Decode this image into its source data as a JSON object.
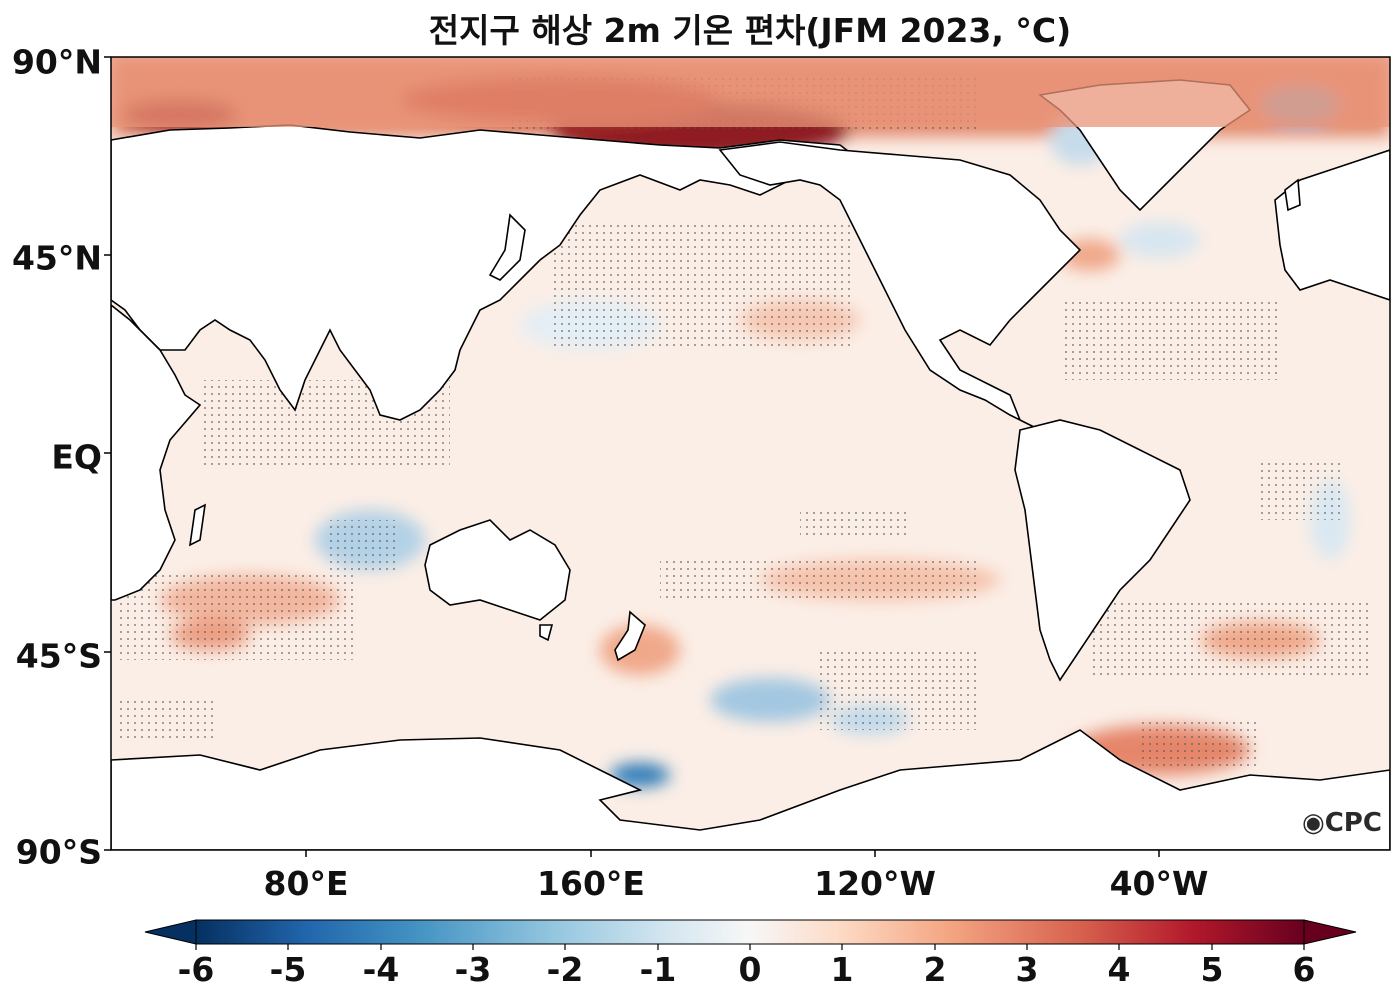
{
  "title": "전지구 해상 2m 기온 편차(JFM 2023, °C)",
  "map": {
    "lat_labels": [
      "90°N",
      "45°N",
      "EQ",
      "45°S",
      "90°S"
    ],
    "lon_labels": [
      "80°E",
      "160°E",
      "120°W",
      "40°W"
    ],
    "logo_text": "CPC",
    "stippling": "significant anomalies"
  },
  "colorbar": {
    "ticks": [
      "-6",
      "-5",
      "-4",
      "-3",
      "-2",
      "-1",
      "0",
      "1",
      "2",
      "3",
      "4",
      "5",
      "6"
    ],
    "min": -6,
    "max": 6,
    "extend": "both",
    "colors": [
      "#053061",
      "#2166ac",
      "#4393c3",
      "#92c5de",
      "#d1e5f0",
      "#f7f7f7",
      "#fddbc7",
      "#f4a582",
      "#d6604d",
      "#b2182b",
      "#67001f"
    ]
  }
}
